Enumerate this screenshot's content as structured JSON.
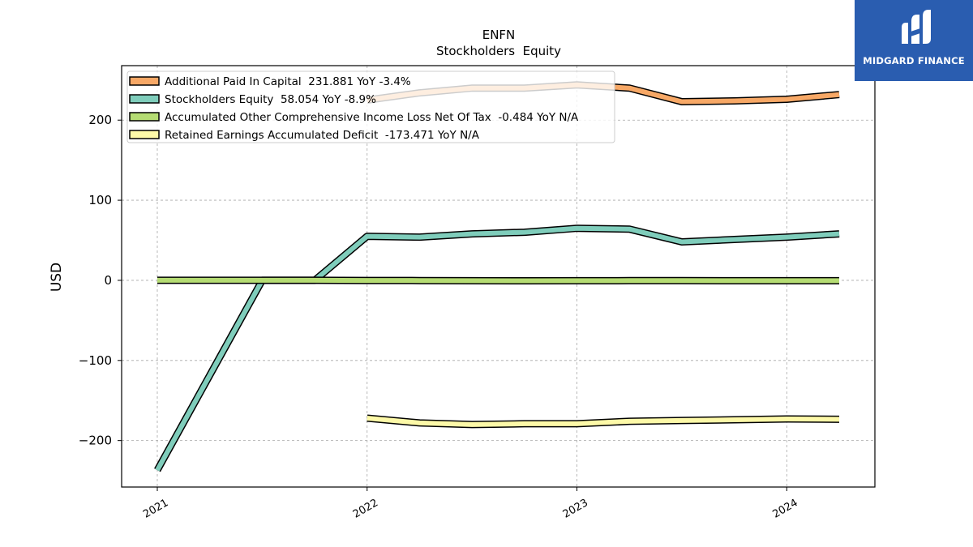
{
  "brand": {
    "name": "MIDGARD FINANCE",
    "color": "#2a5db0"
  },
  "chart_data": {
    "type": "line",
    "title": "ENFN",
    "subtitle": "Stockholders  Equity",
    "xlabel": "",
    "ylabel": "USD",
    "xlim": [
      2020.83,
      2024.42
    ],
    "ylim": [
      -258,
      268
    ],
    "x_ticks": [
      2021,
      2022,
      2023,
      2024
    ],
    "y_ticks": [
      -200,
      -100,
      0,
      100,
      200
    ],
    "y_tick_labels": [
      "−200",
      "−100",
      "0",
      "100",
      "200"
    ],
    "grid": true,
    "legend_position": "top-left",
    "series": [
      {
        "name": "Additional Paid In Capital",
        "legend": "Additional Paid In Capital  231.881 YoY -3.4%",
        "color": "#f7a866",
        "x": [
          2021.0,
          2021.5,
          2021.75,
          2022.0,
          2022.25,
          2022.5,
          2022.75,
          2023.0,
          2023.25,
          2023.5,
          2023.75,
          2024.0,
          2024.25
        ],
        "values": [
          null,
          null,
          null,
          225,
          234,
          240,
          240,
          244,
          240,
          223,
          224,
          226,
          231.881
        ]
      },
      {
        "name": "Stockholders Equity",
        "legend": "Stockholders Equity  58.054 YoY -8.9%",
        "color": "#7fcdbb",
        "x": [
          2021.0,
          2021.5,
          2021.75,
          2022.0,
          2022.25,
          2022.5,
          2022.75,
          2023.0,
          2023.25,
          2023.5,
          2023.75,
          2024.0,
          2024.25
        ],
        "values": [
          -237,
          0,
          0,
          55,
          54,
          58,
          60,
          65,
          64,
          48,
          51,
          54,
          58.054
        ]
      },
      {
        "name": "Accumulated Other Comprehensive Income Loss Net Of Tax",
        "legend": "Accumulated Other Comprehensive Income Loss Net Of Tax  -0.484 YoY N/A",
        "color": "#b5dc73",
        "x": [
          2021.0,
          2021.5,
          2021.75,
          2022.0,
          2022.25,
          2022.5,
          2022.75,
          2023.0,
          2023.25,
          2023.5,
          2023.75,
          2024.0,
          2024.25
        ],
        "values": [
          0,
          0,
          0,
          -0.2,
          -0.3,
          -0.5,
          -0.6,
          -0.5,
          -0.4,
          -0.4,
          -0.5,
          -0.5,
          -0.484
        ]
      },
      {
        "name": "Retained Earnings Accumulated Deficit",
        "legend": "Retained Earnings Accumulated Deficit  -173.471 YoY N/A",
        "color": "#fdf9a8",
        "x": [
          2021.0,
          2021.5,
          2021.75,
          2022.0,
          2022.25,
          2022.5,
          2022.75,
          2023.0,
          2023.25,
          2023.5,
          2023.75,
          2024.0,
          2024.25
        ],
        "values": [
          null,
          null,
          null,
          -172,
          -178,
          -180,
          -179,
          -179,
          -176,
          -175,
          -174,
          -173,
          -173.471
        ]
      }
    ]
  }
}
